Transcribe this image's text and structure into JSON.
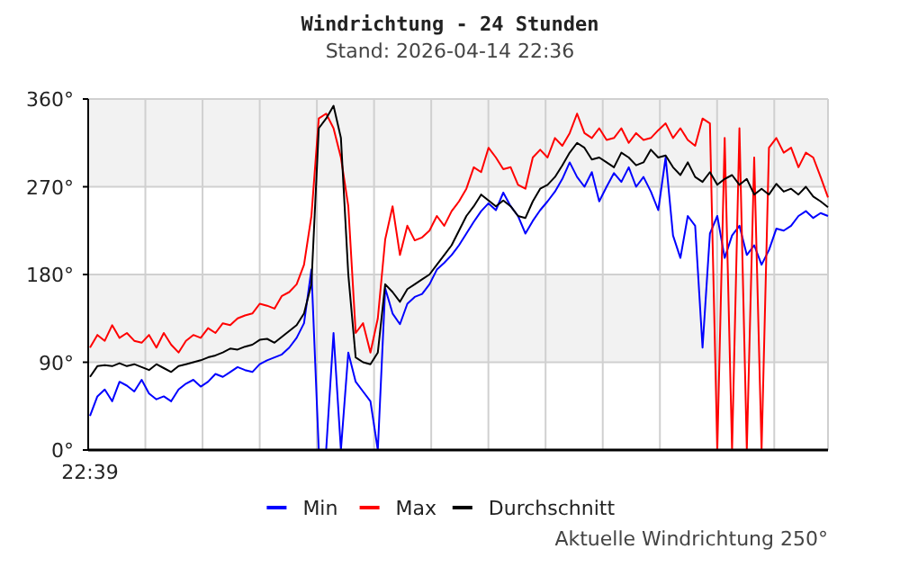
{
  "chart_data": {
    "type": "line",
    "title": "Windrichtung - 24 Stunden",
    "subtitle": "Stand: 2026-04-14 22:36",
    "annotations": [
      "Aktuelle Windrichtung 250°"
    ],
    "categories": [
      "22:39",
      null,
      null,
      null,
      null,
      null,
      null,
      null,
      null,
      null,
      null,
      null,
      null,
      null,
      null,
      null,
      null,
      null,
      null,
      null,
      null,
      null,
      null,
      null,
      null,
      null,
      null,
      null,
      null,
      null,
      null,
      null,
      null,
      null,
      null,
      null,
      null,
      null,
      null,
      null,
      null,
      null,
      null,
      null,
      null,
      null,
      null,
      null,
      null,
      null,
      null,
      null,
      null,
      null,
      null,
      null,
      null,
      null,
      null,
      null,
      null,
      null,
      null,
      null,
      null,
      null,
      null,
      null,
      null,
      null,
      null,
      null,
      null,
      null,
      null,
      null,
      null,
      null,
      null,
      null,
      null,
      null,
      null,
      null,
      null,
      null,
      null,
      null,
      null,
      null,
      null,
      null,
      null,
      null,
      null,
      null,
      null,
      null,
      null,
      null,
      null
    ],
    "series": [
      {
        "name": "Min",
        "color": "#0000ff",
        "values": [
          35,
          55,
          62,
          50,
          70,
          66,
          60,
          72,
          58,
          52,
          55,
          50,
          62,
          68,
          72,
          65,
          70,
          78,
          75,
          80,
          85,
          82,
          80,
          88,
          92,
          95,
          98,
          105,
          115,
          130,
          185,
          0,
          0,
          120,
          0,
          100,
          70,
          60,
          50,
          0,
          166,
          140,
          129,
          150,
          157,
          160,
          170,
          185,
          192,
          200,
          210,
          222,
          234,
          245,
          253,
          246,
          264,
          250,
          240,
          222,
          235,
          246,
          255,
          265,
          278,
          295,
          280,
          270,
          285,
          255,
          270,
          284,
          275,
          290,
          270,
          280,
          265,
          246,
          300,
          220,
          197,
          240,
          230,
          105,
          222,
          240,
          197,
          220,
          230,
          200,
          210,
          190,
          205,
          227,
          225,
          230,
          240,
          245,
          238,
          243,
          240
        ]
      },
      {
        "name": "Max",
        "color": "#ff0000",
        "values": [
          105,
          118,
          112,
          128,
          115,
          120,
          112,
          110,
          118,
          105,
          120,
          108,
          100,
          112,
          118,
          115,
          125,
          120,
          130,
          128,
          135,
          138,
          140,
          150,
          148,
          145,
          158,
          162,
          170,
          190,
          240,
          340,
          345,
          330,
          300,
          250,
          120,
          130,
          100,
          135,
          216,
          250,
          200,
          230,
          215,
          218,
          225,
          240,
          230,
          245,
          255,
          268,
          290,
          285,
          310,
          300,
          288,
          290,
          272,
          268,
          300,
          308,
          300,
          320,
          312,
          325,
          345,
          325,
          320,
          330,
          318,
          320,
          330,
          315,
          325,
          318,
          320,
          328,
          335,
          320,
          330,
          318,
          312,
          340,
          335,
          0,
          320,
          0,
          330,
          0,
          300,
          0,
          310,
          320,
          305,
          310,
          290,
          305,
          300,
          280,
          259
        ]
      },
      {
        "name": "Durchschnitt",
        "color": "#000000",
        "values": [
          75,
          86,
          87,
          86,
          89,
          86,
          88,
          85,
          82,
          88,
          84,
          80,
          86,
          88,
          90,
          92,
          95,
          97,
          100,
          104,
          103,
          106,
          108,
          113,
          114,
          110,
          116,
          122,
          128,
          140,
          170,
          330,
          340,
          353,
          320,
          180,
          95,
          90,
          88,
          100,
          170,
          162,
          152,
          165,
          170,
          175,
          180,
          190,
          200,
          210,
          225,
          240,
          250,
          262,
          256,
          250,
          256,
          250,
          240,
          238,
          255,
          268,
          272,
          280,
          292,
          305,
          315,
          310,
          298,
          300,
          295,
          290,
          305,
          300,
          292,
          295,
          308,
          300,
          302,
          290,
          282,
          295,
          280,
          275,
          285,
          272,
          278,
          282,
          272,
          278,
          262,
          268,
          262,
          273,
          265,
          268,
          262,
          270,
          260,
          255,
          249
        ]
      }
    ],
    "ylim": [
      0,
      360
    ],
    "yticks": [
      {
        "value": 0,
        "label": "0°"
      },
      {
        "value": 90,
        "label": "90°"
      },
      {
        "value": 180,
        "label": "180°"
      },
      {
        "value": 270,
        "label": "270°"
      },
      {
        "value": 360,
        "label": "360°"
      }
    ],
    "grid": true,
    "legend": "bottom",
    "marker": "none",
    "line_style": "solid"
  }
}
